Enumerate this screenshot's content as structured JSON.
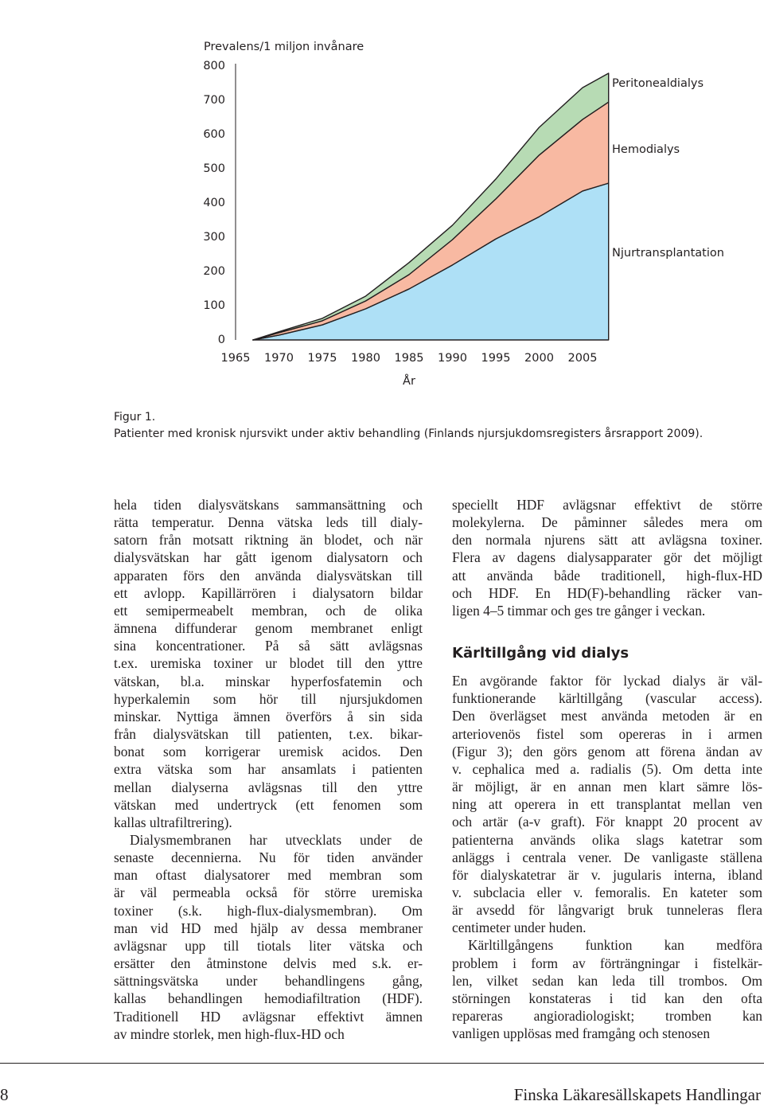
{
  "chart_data": {
    "type": "area",
    "stacked": true,
    "y_label": "Prevalens/1 miljon invånare",
    "x_label": "År",
    "x": [
      1967,
      1970,
      1975,
      1980,
      1985,
      1990,
      1995,
      2000,
      2005,
      2008
    ],
    "xlim": [
      1965,
      2008
    ],
    "xticks": [
      1965,
      1970,
      1975,
      1980,
      1985,
      1990,
      1995,
      2000,
      2005
    ],
    "ylim": [
      0,
      800
    ],
    "yticks": [
      0,
      100,
      200,
      300,
      400,
      500,
      600,
      700,
      800
    ],
    "series": [
      {
        "name": "Njurtransplantation",
        "color": "#aee0f6",
        "values": [
          0,
          14,
          44,
          91,
          149,
          219,
          295,
          360,
          435,
          458
        ]
      },
      {
        "name": "Hemodialys",
        "color": "#f8b9a2",
        "values": [
          0,
          7,
          12,
          23,
          42,
          74,
          117,
          180,
          209,
          237
        ]
      },
      {
        "name": "Peritonealdialys",
        "color": "#b7dbb4",
        "values": [
          0,
          3,
          7,
          14,
          35,
          42,
          58,
          81,
          93,
          84
        ]
      }
    ]
  },
  "caption": {
    "label": "Figur 1.",
    "text": "Patienter med kronisk njursvikt under aktiv behandling (Finlands njursjukdomsregisters årsrapport 2009)."
  },
  "left_column": {
    "paragraphs": [
      {
        "lines": [
          "hela tiden dialysvätskans sammansättning och",
          "rätta temperatur. Denna vätska leds till dialy-",
          "satorn från motsatt riktning än blodet, och när",
          "dialysvätskan har gått igenom dialysatorn och",
          "apparaten förs den använda dialysvätskan till",
          "ett avlopp. Kapillärrören i dialysatorn bildar",
          "ett semipermeabelt membran, och de olika",
          "ämnena diffunderar genom membranet enligt",
          "sina koncentrationer. På så sätt avlägsnas",
          "t.ex. uremiska toxiner ur blodet till den yttre",
          "vätskan, bl.a. minskar hyperfosfatemin och",
          "hyperkalemin som hör till njursjukdomen",
          "minskar. Nyttiga ämnen överförs å sin sida",
          "från dialysvätskan till patienten, t.ex. bikar-",
          "bonat som korrigerar uremisk acidos. Den",
          "extra vätska som har ansamlats i patienten",
          "mellan dialyserna avlägsnas till den yttre",
          "vätskan med undertryck (ett fenomen som",
          "kallas ultrafiltrering)."
        ]
      },
      {
        "lines": [
          "Dialysmembranen har utvecklats under de",
          "senaste decennierna. Nu för tiden använder",
          "man oftast dialysatorer med membran som",
          "är väl permeabla också för större uremiska",
          "toxiner (s.k. high-flux-dialysmembran). Om",
          "man vid HD med hjälp av dessa membraner",
          "avlägsnar upp till tiotals liter vätska och",
          "ersätter den åtminstone delvis med s.k. er-",
          "sättningsvätska under behandlingens gång,",
          "kallas behandlingen hemodiafiltration (HDF).",
          "Traditionell HD avlägsnar effektivt ämnen",
          "av mindre storlek, men high-flux-HD och"
        ]
      }
    ]
  },
  "right_column": {
    "paragraphs_before": [
      {
        "lines": [
          "speciellt HDF avlägsnar effektivt de större",
          "molekylerna. De påminner således mera om",
          "den normala njurens sätt att avlägsna toxiner.",
          "Flera av dagens dialysapparater gör det möjligt",
          "att använda både traditionell, high-flux-HD",
          "och HDF. En HD(F)-behandling räcker van-",
          "ligen 4–5 timmar och ges tre gånger i veckan."
        ]
      }
    ],
    "heading": "Kärltillgång vid dialys",
    "paragraphs_after": [
      {
        "lines": [
          "En avgörande faktor för lyckad dialys är väl-",
          "funktionerande kärltillgång (vascular access).",
          "Den överlägset mest använda metoden är en",
          "arteriovenös fistel som opereras in i armen",
          "(Figur 3); den görs genom att förena ändan av",
          "v. cephalica med a. radialis (5). Om detta inte",
          "är möjligt, är en annan men klart sämre lös-",
          "ning att operera in ett transplantat mellan ven",
          "och artär (a-v graft). För knappt 20 procent av",
          "patienterna används olika slags katetrar som",
          "anläggs i centrala vener. De vanligaste ställena",
          "för dialyskatetrar är v. jugularis interna, ibland",
          "v. subclacia eller v. femoralis. En kateter som",
          "är avsedd för långvarigt bruk tunneleras flera",
          "centimeter under huden."
        ]
      },
      {
        "lines": [
          "Kärltillgångens funktion kan medföra",
          "problem i form av förträngningar i fistelkär-",
          "len, vilket sedan kan leda till trombos. Om",
          "störningen konstateras i tid kan den ofta",
          "repareras angioradiologiskt; tromben kan",
          "vanligen upplösas med framgång och stenosen"
        ]
      }
    ]
  },
  "footer": {
    "page_number": "8",
    "journal": "Finska Läkaresällskapets Handlingar"
  }
}
